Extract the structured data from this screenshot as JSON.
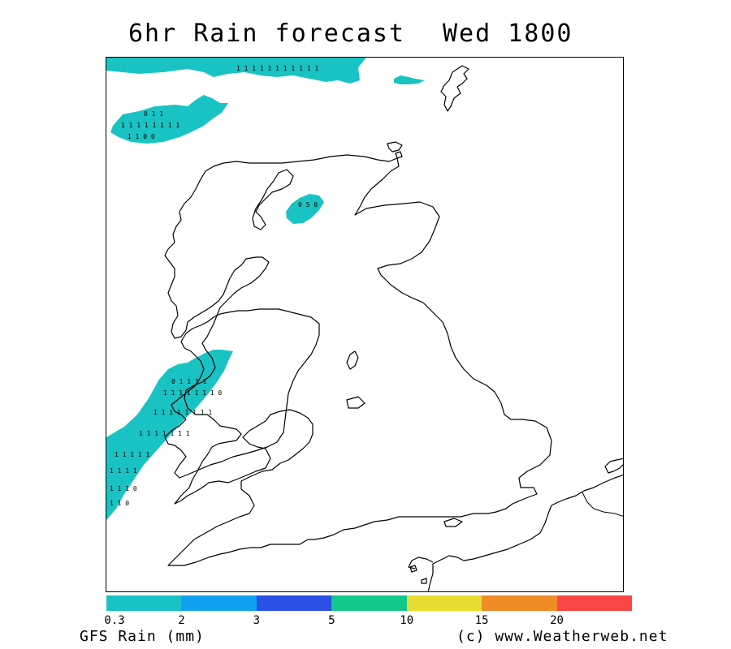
{
  "title": {
    "left": "6hr Rain forecast",
    "right": "Wed 1800"
  },
  "legend": {
    "title": "GFS Rain (mm)",
    "ticks": [
      "0.3",
      "2",
      "3",
      "5",
      "10",
      "15",
      "20"
    ],
    "colors": [
      "#19c3c3",
      "#0fa0f0",
      "#2a50e6",
      "#14c88c",
      "#e6dc32",
      "#f08c28",
      "#fa4646"
    ]
  },
  "copyright": "(c) www.Weatherweb.net",
  "map": {
    "rain_color": "#19c3c3",
    "rain_areas": [
      {
        "region": "north-atlantic-top",
        "intensity_mm": "0.3-2"
      },
      {
        "region": "north-atlantic-west",
        "intensity_mm": "0.3-2"
      },
      {
        "region": "faroe-area",
        "intensity_mm": "0.3-2"
      },
      {
        "region": "western-scotland-skye",
        "intensity_mm": "0.3-2"
      },
      {
        "region": "west-of-ireland",
        "intensity_mm": "0.3-2"
      }
    ],
    "digit_rows": [
      "1 1 1 1 1 1 1 1 1 1 1",
      "0 1 1",
      "1 1 1 1 1 1 1 1",
      "1 1 0 0",
      "0 5 0",
      "0 1 1 1 1",
      "1 1 1 1 1 1 1 0",
      "1 1 1 1 1 1 1 1",
      "1 1 1 1 1 1 1",
      "1 1 1 1 1",
      "1 1 1 1",
      "1 1 1 0",
      "1 1 0"
    ]
  }
}
